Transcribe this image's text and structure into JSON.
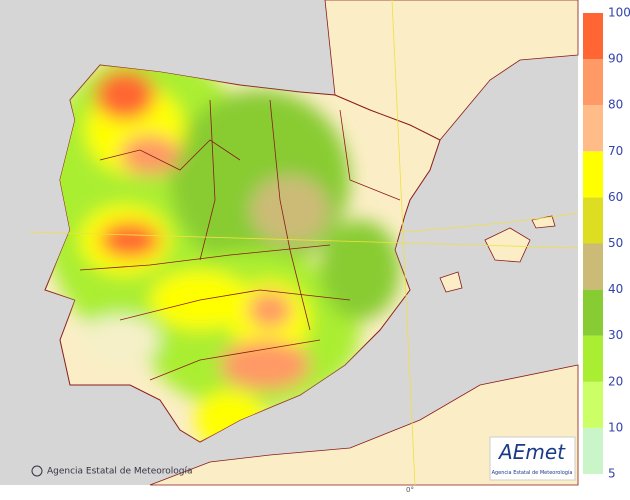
{
  "map": {
    "credit": "Agencia Estatal de Meteorología",
    "meridian_label": "0°"
  },
  "logo": {
    "name": "AEmet",
    "subtitle": "Agencia Estatal de Meteorología"
  },
  "legend": {
    "ticks": [
      5,
      10,
      20,
      30,
      40,
      50,
      60,
      70,
      80,
      90,
      100
    ],
    "colors": [
      "#c9f5c9",
      "#ccff66",
      "#aaee33",
      "#88cc33",
      "#ccbb77",
      "#dddd22",
      "#ffff00",
      "#ffbb88",
      "#ff9966",
      "#ff6633"
    ]
  }
}
